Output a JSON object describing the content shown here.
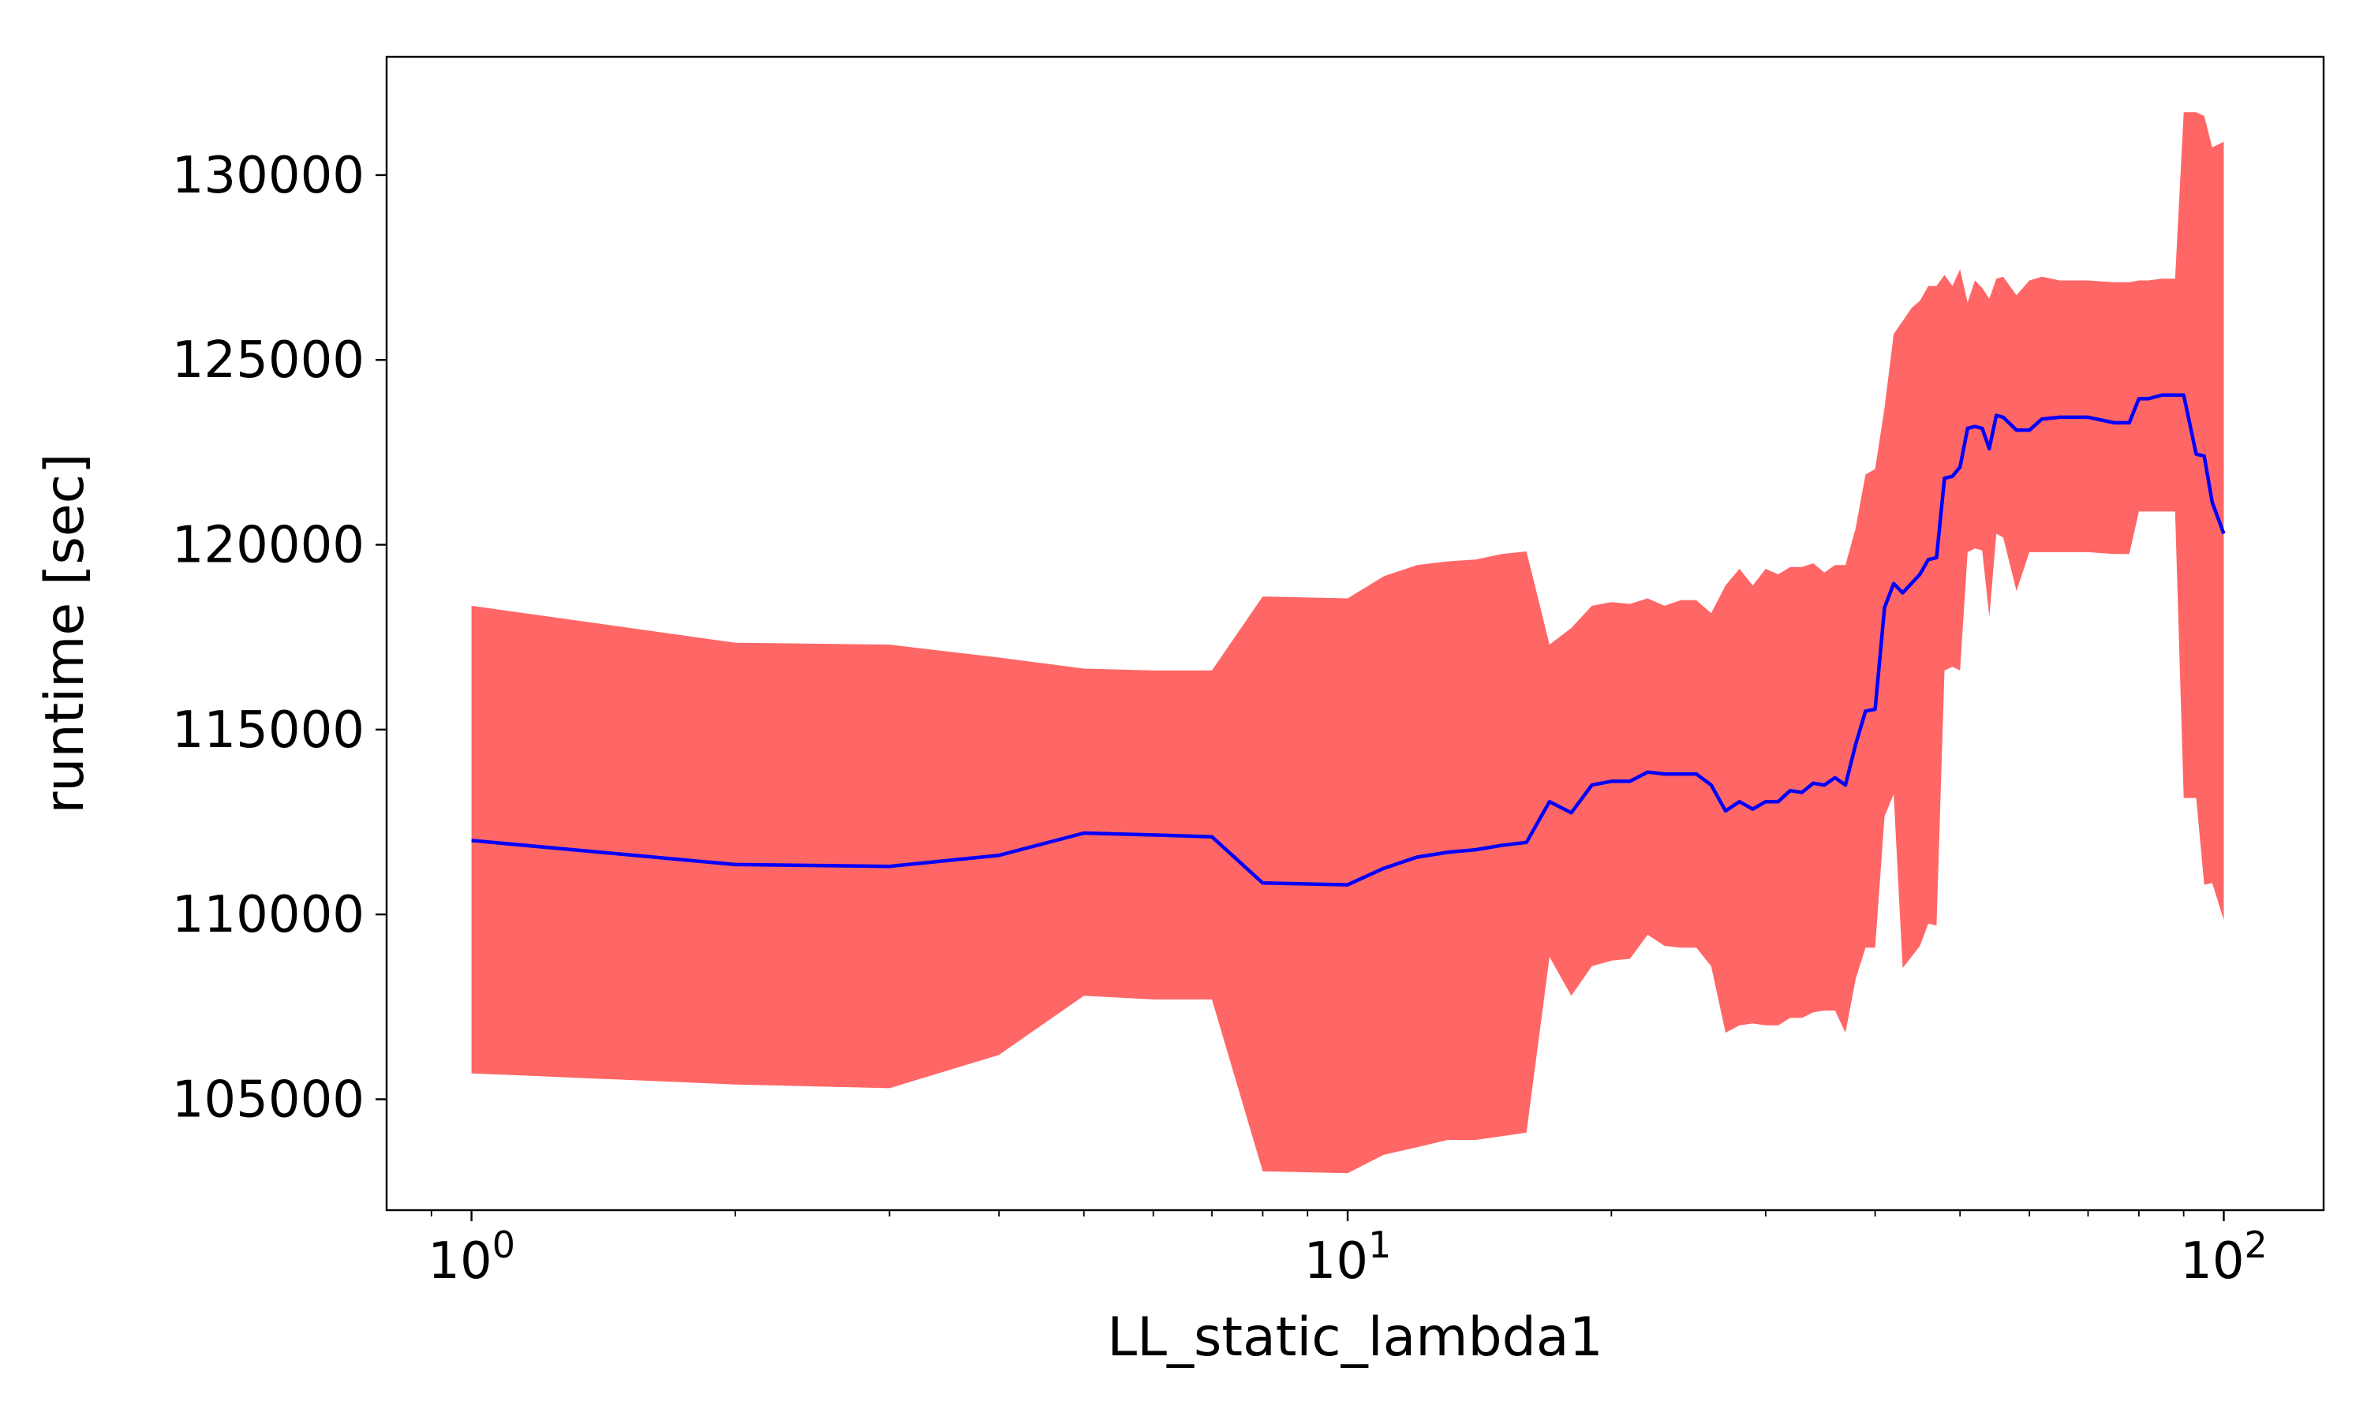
{
  "chart_data": {
    "type": "line",
    "title": "",
    "xlabel": "LL_static_lambda1",
    "ylabel": "runtime [sec]",
    "xscale": "log",
    "xlim": [
      0.8,
      130
    ],
    "ylim": [
      102000,
      133200
    ],
    "grid": false,
    "x_ticks": [
      {
        "value": 1,
        "base": "10",
        "exp": "0"
      },
      {
        "value": 10,
        "base": "10",
        "exp": "1"
      },
      {
        "value": 100,
        "base": "10",
        "exp": "2"
      }
    ],
    "y_ticks": [
      105000,
      110000,
      115000,
      120000,
      125000,
      130000
    ],
    "y_tick_labels": [
      "105000",
      "110000",
      "115000",
      "120000",
      "125000",
      "130000"
    ],
    "colors": {
      "line": "#0000ff",
      "band": "#ff6666"
    },
    "x": [
      1,
      2,
      3,
      4,
      5,
      6,
      7,
      8,
      10,
      11,
      12,
      13,
      14,
      15,
      16,
      17,
      18,
      19,
      20,
      21,
      22,
      23,
      24,
      25,
      26,
      27,
      28,
      29,
      30,
      31,
      32,
      33,
      34,
      35,
      36,
      37,
      38,
      39,
      40,
      41,
      42,
      43,
      44,
      45,
      46,
      47,
      48,
      49,
      50,
      51,
      52,
      53,
      54,
      55,
      56,
      58,
      60,
      62,
      65,
      70,
      75,
      78,
      80,
      82,
      85,
      88,
      90,
      93,
      95,
      97,
      100
    ],
    "series": [
      {
        "values": [
          112000,
          111350,
          111300,
          111600,
          112200,
          112150,
          112100,
          110850,
          110800,
          111250,
          111550,
          111680,
          111750,
          111870,
          111950,
          113050,
          112750,
          113500,
          113600,
          113600,
          113850,
          113800,
          113800,
          113800,
          113500,
          112800,
          113050,
          112850,
          113050,
          113050,
          113350,
          113300,
          113550,
          113500,
          113700,
          113500,
          114600,
          115500,
          115550,
          118300,
          118950,
          118700,
          118950,
          119200,
          119600,
          119650,
          121800,
          121850,
          122100,
          123150,
          123200,
          123150,
          122600,
          123500,
          123450,
          123100,
          123100,
          123400,
          123450,
          123450,
          123300,
          123300,
          123950,
          123950,
          124050,
          124050,
          124050,
          122450,
          122400,
          121150,
          120300
        ],
        "upper": [
          118350,
          117350,
          117300,
          116950,
          116650,
          116600,
          116600,
          118600,
          118550,
          119150,
          119450,
          119550,
          119600,
          119750,
          119820,
          117300,
          117750,
          118350,
          118450,
          118400,
          118550,
          118350,
          118500,
          118500,
          118150,
          118900,
          119350,
          118900,
          119350,
          119200,
          119400,
          119400,
          119500,
          119250,
          119450,
          119450,
          120450,
          121900,
          122050,
          123700,
          125700,
          126050,
          126400,
          126600,
          127000,
          127000,
          127300,
          127000,
          127450,
          126550,
          127150,
          126950,
          126650,
          127200,
          127250,
          126750,
          127150,
          127250,
          127150,
          127150,
          127100,
          127100,
          127150,
          127150,
          127200,
          127200,
          131700,
          131700,
          131600,
          130750,
          130900
        ],
        "lower": [
          105700,
          105400,
          105300,
          106200,
          107800,
          107700,
          107700,
          103050,
          103000,
          103500,
          103700,
          103900,
          103900,
          104000,
          104100,
          108850,
          107800,
          108600,
          108750,
          108800,
          109450,
          109150,
          109100,
          109100,
          108600,
          106800,
          107000,
          107050,
          107000,
          107000,
          107200,
          107200,
          107350,
          107400,
          107400,
          106800,
          108250,
          109100,
          109100,
          112650,
          113250,
          108550,
          108850,
          109150,
          109750,
          109700,
          116600,
          116700,
          116600,
          119800,
          119900,
          119850,
          118050,
          120300,
          120200,
          118750,
          119800,
          119800,
          119800,
          119800,
          119750,
          119750,
          120900,
          120900,
          120900,
          120900,
          113150,
          113150,
          110800,
          110850,
          109850
        ]
      }
    ]
  }
}
